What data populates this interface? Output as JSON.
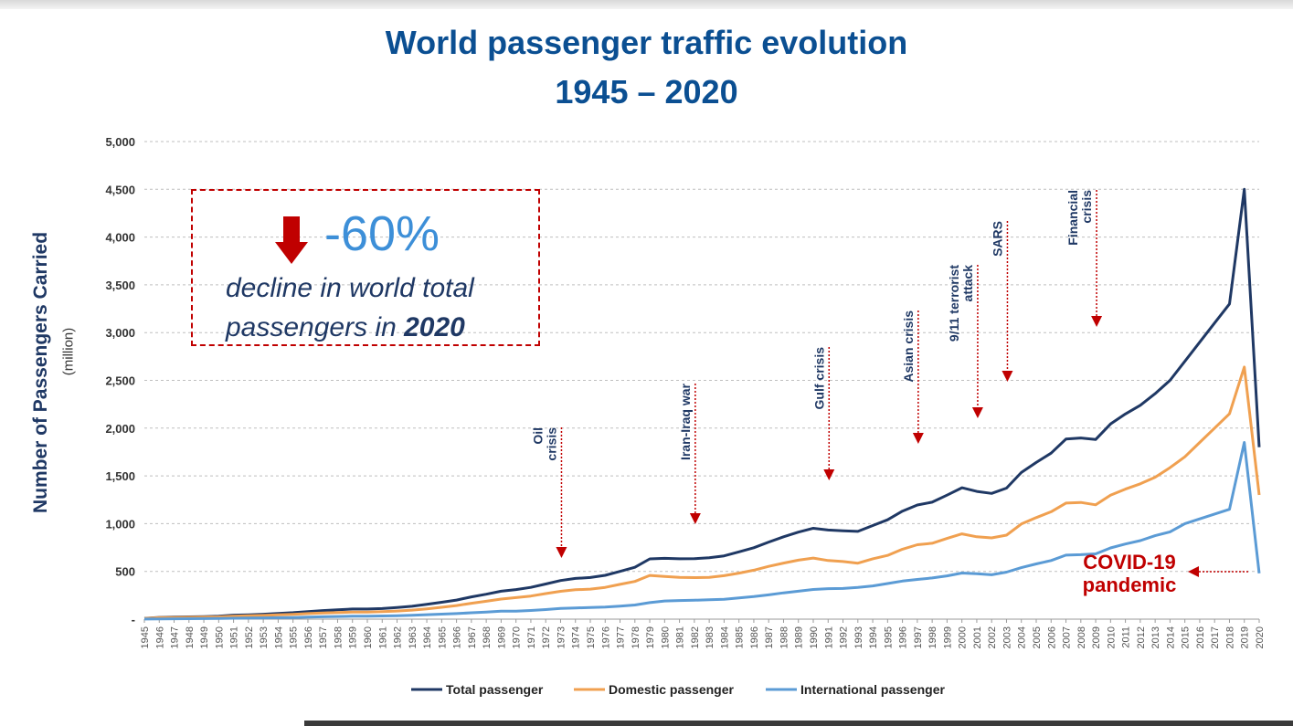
{
  "title_line1": "World passenger traffic evolution",
  "title_line2": "1945 – 2020",
  "callout": {
    "change": "-60%",
    "text_line1": "decline in world total",
    "text_line2_prefix": "passengers in ",
    "text_line2_year": "2020",
    "arrow_icon": "down-arrow-icon",
    "arrow_color": "#c00000"
  },
  "covid_label": "COVID-19 pandemic",
  "chart_data": {
    "type": "line",
    "ylabel": "Number of Passengers Carried",
    "ylabel_unit": "(million)",
    "ylim": [
      0,
      5000
    ],
    "y_ticks": [
      0,
      500,
      1000,
      1500,
      2000,
      2500,
      3000,
      3500,
      4000,
      4500,
      5000
    ],
    "y_tick_labels": [
      "-",
      "500",
      "1,000",
      "1,500",
      "2,000",
      "2,500",
      "3,000",
      "3,500",
      "4,000",
      "4,500",
      "5,000"
    ],
    "grid": true,
    "legend_position": "bottom",
    "x": [
      1945,
      1946,
      1947,
      1948,
      1949,
      1950,
      1951,
      1952,
      1953,
      1954,
      1955,
      1956,
      1957,
      1958,
      1959,
      1960,
      1961,
      1962,
      1963,
      1964,
      1965,
      1966,
      1967,
      1968,
      1969,
      1970,
      1971,
      1972,
      1973,
      1974,
      1975,
      1976,
      1977,
      1978,
      1979,
      1980,
      1981,
      1982,
      1983,
      1984,
      1985,
      1986,
      1987,
      1988,
      1989,
      1990,
      1991,
      1992,
      1993,
      1994,
      1995,
      1996,
      1997,
      1998,
      1999,
      2000,
      2001,
      2002,
      2003,
      2004,
      2005,
      2006,
      2007,
      2008,
      2009,
      2010,
      2011,
      2012,
      2013,
      2014,
      2015,
      2016,
      2017,
      2018,
      2019,
      2020
    ],
    "series": [
      {
        "name": "Total passenger",
        "color": "#1f3864",
        "values": [
          9,
          18,
          21,
          24,
          27,
          31,
          42,
          46,
          52,
          60,
          68,
          79,
          90,
          98,
          106,
          106,
          111,
          121,
          135,
          155,
          177,
          200,
          233,
          261,
          293,
          310,
          333,
          368,
          404,
          426,
          436,
          459,
          500,
          543,
          631,
          637,
          632,
          633,
          642,
          663,
          705,
          748,
          807,
          862,
          911,
          951,
          933,
          924,
          919,
          980,
          1040,
          1131,
          1195,
          1225,
          1298,
          1376,
          1337,
          1316,
          1372,
          1535,
          1641,
          1738,
          1885,
          1897,
          1881,
          2043,
          2148,
          2239,
          2360,
          2500,
          2700,
          2900,
          3100,
          3300,
          4500,
          1800
        ]
      },
      {
        "name": "Domestic passenger",
        "color": "#f0a050",
        "values": [
          8,
          15,
          17,
          19,
          21,
          24,
          32,
          35,
          39,
          45,
          51,
          58,
          65,
          70,
          75,
          75,
          78,
          85,
          95,
          108,
          124,
          142,
          166,
          187,
          210,
          226,
          242,
          268,
          292,
          308,
          315,
          333,
          364,
          395,
          458,
          447,
          437,
          435,
          438,
          455,
          482,
          512,
          553,
          587,
          618,
          640,
          614,
          603,
          586,
          632,
          667,
          732,
          779,
          794,
          845,
          893,
          862,
          851,
          880,
          996,
          1063,
          1124,
          1215,
          1222,
          1197,
          1297,
          1361,
          1417,
          1486,
          1586,
          1700,
          1850,
          2000,
          2150,
          2640,
          1300
        ]
      },
      {
        "name": "International passenger",
        "color": "#5b9bd5",
        "values": [
          1,
          3,
          4,
          5,
          6,
          7,
          10,
          11,
          13,
          15,
          17,
          21,
          25,
          28,
          31,
          31,
          33,
          36,
          40,
          47,
          53,
          58,
          67,
          74,
          83,
          84,
          91,
          100,
          112,
          118,
          121,
          126,
          136,
          148,
          173,
          190,
          195,
          198,
          204,
          208,
          223,
          236,
          254,
          275,
          293,
          311,
          319,
          321,
          333,
          348,
          373,
          399,
          416,
          431,
          453,
          483,
          475,
          465,
          492,
          539,
          578,
          614,
          670,
          675,
          684,
          746,
          787,
          822,
          874,
          914,
          1000,
          1050,
          1100,
          1150,
          1850,
          480
        ]
      }
    ],
    "events": [
      {
        "label": "Oil crisis",
        "x": 1973
      },
      {
        "label": "Iran-Iraq war",
        "x": 1982
      },
      {
        "label": "Gulf crisis",
        "x": 1991
      },
      {
        "label": "Asian crisis",
        "x": 1997
      },
      {
        "label": "9/11 terrorist attack",
        "x": 2001
      },
      {
        "label": "SARS",
        "x": 2003
      },
      {
        "label": "Financial crisis",
        "x": 2009
      },
      {
        "label": "COVID-19 pandemic",
        "x": 2020
      }
    ]
  }
}
